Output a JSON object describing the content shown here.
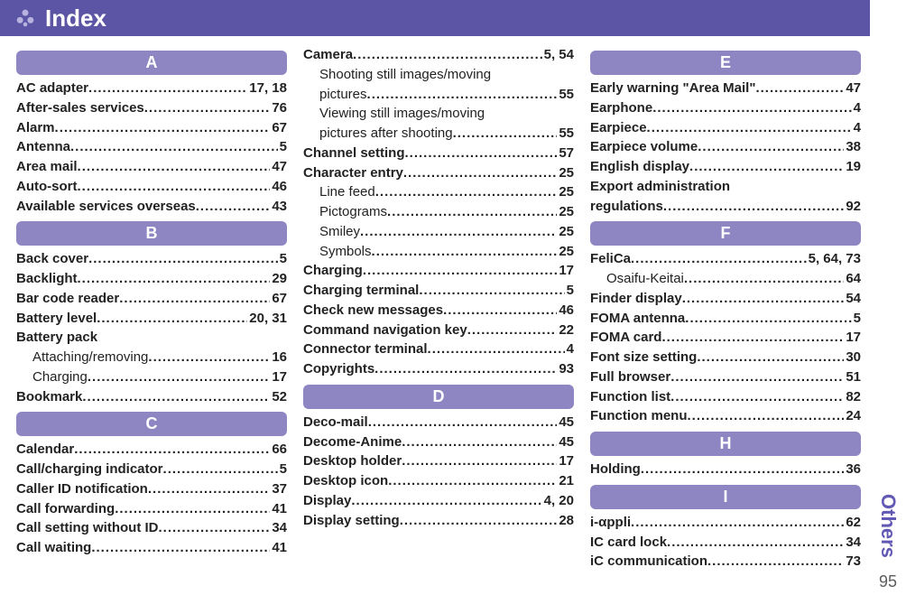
{
  "colors": {
    "header_bg": "#5c54a4",
    "section_bg": "#8d86c2",
    "accent_text": "#6259b5",
    "text": "#222222",
    "page_bg": "#ffffff"
  },
  "header": {
    "title": "Index"
  },
  "rail": {
    "label": "Others",
    "page_number": "95"
  },
  "cols": [
    {
      "sections": [
        {
          "letter": "A",
          "entries": [
            {
              "t": "AC adapter",
              "p": "17, 18",
              "b": true
            },
            {
              "t": "After-sales services",
              "p": "76",
              "b": true
            },
            {
              "t": "Alarm",
              "p": "67",
              "b": true
            },
            {
              "t": "Antenna",
              "p": "5",
              "b": true
            },
            {
              "t": "Area mail",
              "p": "47",
              "b": true
            },
            {
              "t": "Auto-sort",
              "p": "46",
              "b": true
            },
            {
              "t": "Available services overseas",
              "p": "43",
              "b": true
            }
          ]
        },
        {
          "letter": "B",
          "entries": [
            {
              "t": "Back cover",
              "p": "5",
              "b": true
            },
            {
              "t": "Backlight",
              "p": "29",
              "b": true
            },
            {
              "t": "Bar code reader",
              "p": "67",
              "b": true
            },
            {
              "t": "Battery level",
              "p": "20, 31",
              "b": true
            },
            {
              "t": "Battery pack",
              "p": "",
              "b": true,
              "nodots": true
            },
            {
              "t": "Attaching/removing",
              "p": "16",
              "sub": true
            },
            {
              "t": "Charging",
              "p": "17",
              "sub": true
            },
            {
              "t": "Bookmark",
              "p": "52",
              "b": true
            }
          ]
        },
        {
          "letter": "C",
          "entries": [
            {
              "t": "Calendar",
              "p": "66",
              "b": true
            },
            {
              "t": "Call/charging indicator",
              "p": "5",
              "b": true
            },
            {
              "t": "Caller ID notification",
              "p": "37",
              "b": true
            },
            {
              "t": "Call forwarding",
              "p": "41",
              "b": true
            },
            {
              "t": "Call setting without ID",
              "p": "34",
              "b": true
            },
            {
              "t": "Call waiting",
              "p": "41",
              "b": true
            }
          ]
        }
      ]
    },
    {
      "sections": [
        {
          "letter": null,
          "entries": [
            {
              "t": "Camera",
              "p": "5, 54",
              "b": true
            },
            {
              "t": "Shooting still images/moving",
              "p": "",
              "sub": true,
              "nodots": true
            },
            {
              "t": "pictures",
              "p": "55",
              "sub": true
            },
            {
              "t": "Viewing still images/moving",
              "p": "",
              "sub": true,
              "nodots": true
            },
            {
              "t": "pictures after shooting",
              "p": "55",
              "sub": true
            },
            {
              "t": "Channel setting",
              "p": "57",
              "b": true
            },
            {
              "t": "Character entry",
              "p": "25",
              "b": true
            },
            {
              "t": "Line feed",
              "p": "25",
              "sub": true
            },
            {
              "t": "Pictograms",
              "p": "25",
              "sub": true
            },
            {
              "t": "Smiley",
              "p": "25",
              "sub": true
            },
            {
              "t": "Symbols",
              "p": "25",
              "sub": true
            },
            {
              "t": "Charging",
              "p": "17",
              "b": true
            },
            {
              "t": "Charging terminal",
              "p": "5",
              "b": true
            },
            {
              "t": "Check new messages",
              "p": "46",
              "b": true
            },
            {
              "t": "Command navigation key",
              "p": "22",
              "b": true
            },
            {
              "t": "Connector terminal",
              "p": "4",
              "b": true
            },
            {
              "t": "Copyrights",
              "p": "93",
              "b": true
            }
          ]
        },
        {
          "letter": "D",
          "entries": [
            {
              "t": "Deco-mail",
              "p": "45",
              "b": true
            },
            {
              "t": "Decome-Anime",
              "p": "45",
              "b": true
            },
            {
              "t": "Desktop holder",
              "p": "17",
              "b": true
            },
            {
              "t": "Desktop icon",
              "p": "21",
              "b": true
            },
            {
              "t": "Display",
              "p": "4, 20",
              "b": true
            },
            {
              "t": "Display setting",
              "p": "28",
              "b": true
            }
          ]
        }
      ]
    },
    {
      "sections": [
        {
          "letter": "E",
          "entries": [
            {
              "t": "Early warning \"Area Mail\"",
              "p": "47",
              "b": true
            },
            {
              "t": "Earphone",
              "p": "4",
              "b": true
            },
            {
              "t": "Earpiece",
              "p": "4",
              "b": true
            },
            {
              "t": "Earpiece volume",
              "p": "38",
              "b": true
            },
            {
              "t": "English display",
              "p": "19",
              "b": true
            },
            {
              "t": "Export administration",
              "p": "",
              "b": true,
              "nodots": true
            },
            {
              "t": "regulations",
              "p": "92",
              "b": true
            }
          ]
        },
        {
          "letter": "F",
          "entries": [
            {
              "t": "FeliCa",
              "p": "5, 64, 73",
              "b": true
            },
            {
              "t": "Osaifu-Keitai",
              "p": "64",
              "sub": true
            },
            {
              "t": "Finder display",
              "p": "54",
              "b": true
            },
            {
              "t": "FOMA antenna",
              "p": "5",
              "b": true
            },
            {
              "t": "FOMA card",
              "p": "17",
              "b": true
            },
            {
              "t": "Font size setting",
              "p": "30",
              "b": true
            },
            {
              "t": "Full browser",
              "p": "51",
              "b": true
            },
            {
              "t": "Function list",
              "p": "82",
              "b": true
            },
            {
              "t": "Function menu",
              "p": "24",
              "b": true
            }
          ]
        },
        {
          "letter": "H",
          "entries": [
            {
              "t": "Holding",
              "p": "36",
              "b": true
            }
          ]
        },
        {
          "letter": "I",
          "entries": [
            {
              "t": "i-αppli",
              "p": "62",
              "b": true
            },
            {
              "t": "IC card lock",
              "p": "34",
              "b": true
            },
            {
              "t": "iC communication",
              "p": "73",
              "b": true
            }
          ]
        }
      ]
    }
  ]
}
